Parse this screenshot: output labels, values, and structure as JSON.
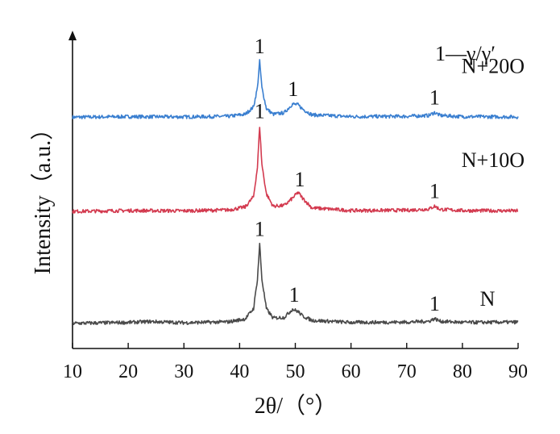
{
  "chart_data": {
    "type": "line",
    "xlabel": "2θ/（°）",
    "ylabel": "Intensity（a.u.）",
    "xlim": [
      10,
      90
    ],
    "xticks": [
      "10",
      "20",
      "30",
      "40",
      "50",
      "60",
      "70",
      "80",
      "90"
    ],
    "yticks_shown": false,
    "grid": false,
    "legend_note": "1—γ/γ′",
    "series": [
      {
        "name": "N+20O",
        "color": "#3a7fd0",
        "baseline": 0.78,
        "points": [
          [
            10,
            0.78
          ],
          [
            20,
            0.782
          ],
          [
            30,
            0.781
          ],
          [
            38,
            0.783
          ],
          [
            41,
            0.79
          ],
          [
            42.5,
            0.815
          ],
          [
            43.2,
            0.88
          ],
          [
            43.6,
            0.97
          ],
          [
            44.0,
            0.88
          ],
          [
            44.8,
            0.81
          ],
          [
            46,
            0.79
          ],
          [
            48,
            0.795
          ],
          [
            49.5,
            0.825
          ],
          [
            50.5,
            0.822
          ],
          [
            51.3,
            0.808
          ],
          [
            53,
            0.788
          ],
          [
            60,
            0.782
          ],
          [
            70,
            0.783
          ],
          [
            74,
            0.786
          ],
          [
            75,
            0.796
          ],
          [
            76,
            0.786
          ],
          [
            80,
            0.782
          ],
          [
            90,
            0.781
          ]
        ],
        "peak_labels": [
          {
            "x": 43.6,
            "text": "1"
          },
          {
            "x": 49.6,
            "text": "1"
          },
          {
            "x": 75.0,
            "text": "1"
          }
        ],
        "label": "N+20O"
      },
      {
        "name": "N+10O",
        "color": "#d33a4f",
        "baseline": 0.46,
        "points": [
          [
            10,
            0.46
          ],
          [
            20,
            0.463
          ],
          [
            30,
            0.462
          ],
          [
            38,
            0.465
          ],
          [
            41,
            0.475
          ],
          [
            42.5,
            0.51
          ],
          [
            43.2,
            0.61
          ],
          [
            43.6,
            0.75
          ],
          [
            44.0,
            0.62
          ],
          [
            44.8,
            0.52
          ],
          [
            46,
            0.478
          ],
          [
            48,
            0.48
          ],
          [
            49.5,
            0.505
          ],
          [
            50.5,
            0.525
          ],
          [
            51.3,
            0.505
          ],
          [
            53,
            0.472
          ],
          [
            60,
            0.463
          ],
          [
            70,
            0.464
          ],
          [
            74,
            0.468
          ],
          [
            75,
            0.478
          ],
          [
            76,
            0.467
          ],
          [
            80,
            0.463
          ],
          [
            90,
            0.462
          ]
        ],
        "peak_labels": [
          {
            "x": 43.6,
            "text": "1"
          },
          {
            "x": 50.8,
            "text": "1"
          },
          {
            "x": 75.0,
            "text": "1"
          }
        ],
        "label": "N+10O"
      },
      {
        "name": "N",
        "color": "#4a4a4a",
        "baseline": 0.08,
        "points": [
          [
            10,
            0.08
          ],
          [
            20,
            0.083
          ],
          [
            24,
            0.086
          ],
          [
            30,
            0.082
          ],
          [
            38,
            0.085
          ],
          [
            41,
            0.095
          ],
          [
            42.5,
            0.13
          ],
          [
            43.2,
            0.23
          ],
          [
            43.6,
            0.35
          ],
          [
            44.0,
            0.23
          ],
          [
            44.8,
            0.13
          ],
          [
            46,
            0.098
          ],
          [
            48,
            0.1
          ],
          [
            49.5,
            0.128
          ],
          [
            50.5,
            0.12
          ],
          [
            51.3,
            0.105
          ],
          [
            53,
            0.09
          ],
          [
            60,
            0.083
          ],
          [
            70,
            0.084
          ],
          [
            74,
            0.087
          ],
          [
            75,
            0.096
          ],
          [
            76,
            0.087
          ],
          [
            80,
            0.083
          ],
          [
            90,
            0.084
          ]
        ],
        "peak_labels": [
          {
            "x": 43.6,
            "text": "1"
          },
          {
            "x": 49.8,
            "text": "1"
          },
          {
            "x": 75.0,
            "text": "1"
          }
        ],
        "label": "N"
      }
    ]
  }
}
